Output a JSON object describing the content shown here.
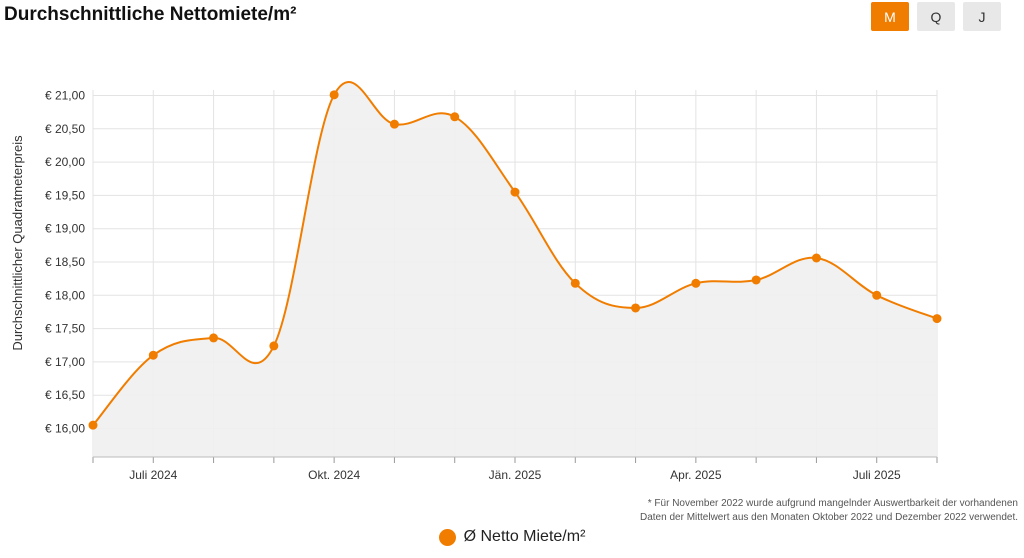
{
  "header": {
    "title": "Durchschnittliche Nettomiete/m²",
    "toggles": [
      {
        "label": "M",
        "active": true
      },
      {
        "label": "Q",
        "active": false
      },
      {
        "label": "J",
        "active": false
      }
    ]
  },
  "footnote": {
    "line1": "* Für November 2022 wurde aufgrund mangelnder Auswertbarkeit der vorhandenen",
    "line2": "Daten der Mittelwert aus den Monaten Oktober 2022 und Dezember 2022 verwendet."
  },
  "legend": {
    "label": "Ø Netto Miete/m²"
  },
  "colors": {
    "accent": "#f07d00",
    "area": "#efefef",
    "grid": "#e3e3e3"
  },
  "chart_data": {
    "type": "line",
    "ylabel": "Durchschnittlicher Quadratmeterpreis",
    "ylim": [
      15.6,
      21.0
    ],
    "yticks": [
      16.0,
      16.5,
      17.0,
      17.5,
      18.0,
      18.5,
      19.0,
      19.5,
      20.0,
      20.5,
      21.0
    ],
    "ytick_labels": [
      "€ 16,00",
      "€ 16,50",
      "€ 17,00",
      "€ 17,50",
      "€ 18,00",
      "€ 18,50",
      "€ 19,00",
      "€ 19,50",
      "€ 20,00",
      "€ 20,50",
      "€ 21,00"
    ],
    "x": [
      "2024-06",
      "2024-07",
      "2024-08",
      "2024-09",
      "2024-10",
      "2024-11",
      "2024-12",
      "2025-01",
      "2025-02",
      "2025-03",
      "2025-04",
      "2025-05",
      "2025-06",
      "2025-07",
      "2025-08"
    ],
    "xtick_labels": [
      "",
      "Juli 2024",
      "",
      "",
      "Okt. 2024",
      "",
      "",
      "Jän. 2025",
      "",
      "",
      "Apr. 2025",
      "",
      "",
      "Juli 2025",
      ""
    ],
    "grid": true,
    "area_fill": true,
    "series": [
      {
        "name": "Ø Netto Miete/m²",
        "values": [
          16.05,
          17.1,
          17.36,
          17.24,
          21.01,
          20.57,
          20.68,
          19.55,
          18.18,
          17.81,
          18.18,
          18.23,
          18.56,
          18.0,
          17.65
        ]
      }
    ]
  }
}
